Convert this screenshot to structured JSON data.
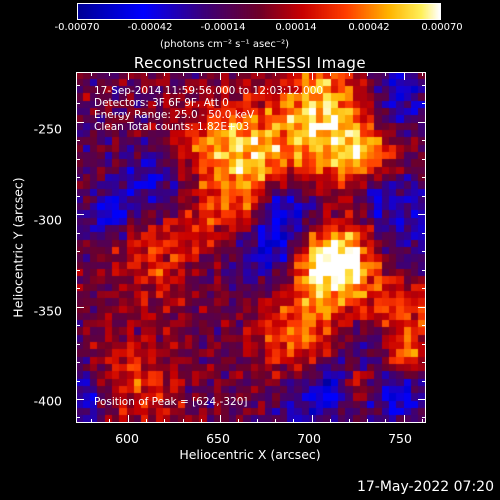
{
  "colorbar": {
    "tick_labels": [
      "-0.00070",
      "-0.00042",
      "-0.00014",
      "0.00014",
      "0.00042",
      "0.00070"
    ],
    "unit_label": "(photons cm⁻² s⁻¹ asec⁻²)",
    "range": [
      -0.0007,
      0.0007
    ]
  },
  "plot": {
    "title": "Reconstructed RHESSI Image",
    "xlabel": "Heliocentric X (arcsec)",
    "ylabel": "Heliocentric Y (arcsec)",
    "x_ticks": [
      "600",
      "650",
      "700",
      "750"
    ],
    "y_ticks": [
      "-250",
      "-300",
      "-350",
      "-400"
    ],
    "x_range": [
      572,
      762
    ],
    "y_range": [
      -413,
      -223
    ],
    "annotations": {
      "time": "17-Sep-2014 11:59:56.000 to 12:03:12.000",
      "detectors": "Detectors: 3F 6F 9F, Att 0",
      "energy": "Energy Range: 25.0 - 50.0 keV",
      "method": "Clean    Total counts: 1.82E+03",
      "peak": "Position of Peak = [624,-320]"
    }
  },
  "timestamp": "17-May-2022 07:20"
}
